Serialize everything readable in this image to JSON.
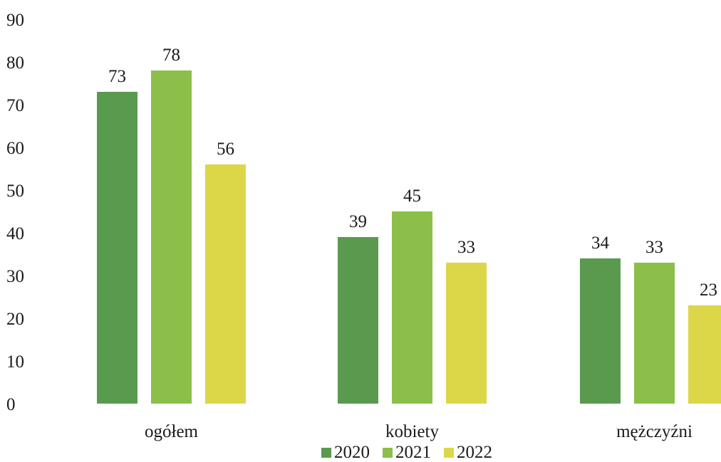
{
  "chart_data": {
    "type": "bar",
    "categories": [
      "ogółem",
      "kobiety",
      "mężczyźni"
    ],
    "series": [
      {
        "name": "2020",
        "values": [
          73,
          39,
          34
        ],
        "color": "#5a9a4e"
      },
      {
        "name": "2021",
        "values": [
          78,
          45,
          33
        ],
        "color": "#8cbf4a"
      },
      {
        "name": "2022",
        "values": [
          56,
          33,
          23
        ],
        "color": "#dcd748"
      }
    ],
    "ylim": [
      0,
      90
    ],
    "yticks": [
      0,
      10,
      20,
      30,
      40,
      50,
      60,
      70,
      80,
      90
    ],
    "grid": false,
    "legend_position": "bottom"
  }
}
